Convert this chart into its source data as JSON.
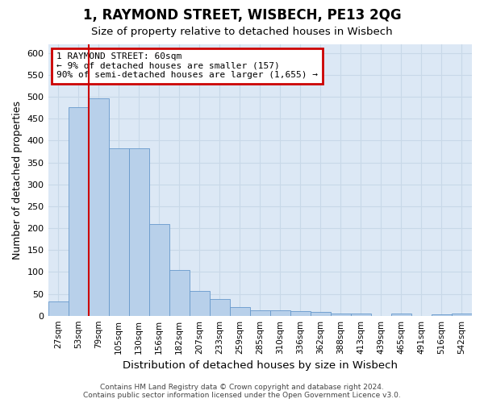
{
  "title": "1, RAYMOND STREET, WISBECH, PE13 2QG",
  "subtitle": "Size of property relative to detached houses in Wisbech",
  "xlabel": "Distribution of detached houses by size in Wisbech",
  "ylabel": "Number of detached properties",
  "categories": [
    "27sqm",
    "53sqm",
    "79sqm",
    "105sqm",
    "130sqm",
    "156sqm",
    "182sqm",
    "207sqm",
    "233sqm",
    "259sqm",
    "285sqm",
    "310sqm",
    "336sqm",
    "362sqm",
    "388sqm",
    "413sqm",
    "439sqm",
    "465sqm",
    "491sqm",
    "516sqm",
    "542sqm"
  ],
  "values": [
    32,
    476,
    497,
    383,
    383,
    209,
    104,
    57,
    38,
    20,
    13,
    13,
    10,
    9,
    5,
    5,
    0,
    5,
    0,
    4,
    5
  ],
  "bar_color": "#b8d0ea",
  "bar_edge_color": "#6699cc",
  "red_line_x": 1.5,
  "annotation_line1": "1 RAYMOND STREET: 60sqm",
  "annotation_line2": "← 9% of detached houses are smaller (157)",
  "annotation_line3": "90% of semi-detached houses are larger (1,655) →",
  "annotation_box_facecolor": "#ffffff",
  "annotation_box_edgecolor": "#cc0000",
  "red_line_color": "#cc0000",
  "grid_color": "#c8d8e8",
  "plot_bg_color": "#dce8f5",
  "ylim_max": 620,
  "yticks": [
    0,
    50,
    100,
    150,
    200,
    250,
    300,
    350,
    400,
    450,
    500,
    550,
    600
  ],
  "footer_line1": "Contains HM Land Registry data © Crown copyright and database right 2024.",
  "footer_line2": "Contains public sector information licensed under the Open Government Licence v3.0."
}
